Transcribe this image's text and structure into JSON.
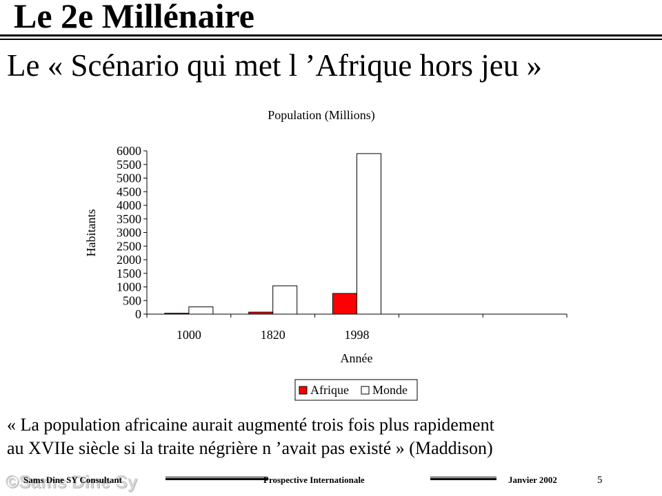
{
  "slide": {
    "title": "Le 2e Millénaire",
    "subtitle": "Le « Scénario qui met l ’Afrique hors jeu »",
    "quote_line1": "« La population africaine aurait augmenté  trois fois plus rapidement",
    "quote_line2": "au XVIIe siècle si la traite négrière n ’avait pas existé » (Maddison)"
  },
  "footer": {
    "author": "Sams Dine SY Consultant",
    "organization": "Prospective Internationale",
    "date": "Janvier 2002",
    "page_number": "5",
    "watermark": "©Sams Dine Sy"
  },
  "colors": {
    "afrique": "#ff0000",
    "monde": "#ffffff",
    "axis": "#000000"
  },
  "chart_data": {
    "type": "bar",
    "title": "Population (Millions)",
    "xlabel": "Année",
    "ylabel": "Habitants",
    "categories": [
      "1000",
      "1820",
      "1998",
      "",
      ""
    ],
    "series": [
      {
        "name": "Afrique",
        "values": [
          33,
          74,
          760,
          null,
          null
        ]
      },
      {
        "name": "Monde",
        "values": [
          268,
          1040,
          5900,
          null,
          null
        ]
      }
    ],
    "ylim": [
      0,
      6000
    ],
    "yticks": [
      "0",
      "500",
      "1000",
      "1500",
      "2000",
      "2500",
      "3000",
      "3500",
      "4000",
      "4500",
      "5000",
      "5500",
      "6000"
    ],
    "grid": false,
    "legend": "bottom"
  }
}
